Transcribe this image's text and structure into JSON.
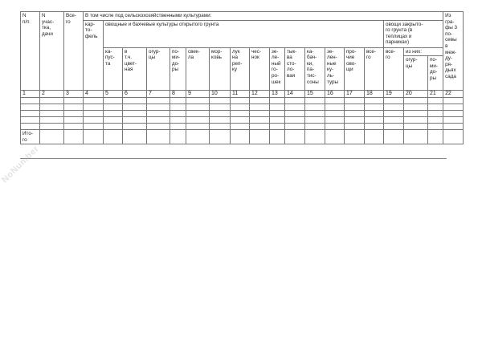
{
  "watermark": "NoNumber",
  "header": {
    "c1": "N\nп/п",
    "c2": "N\nучас-\nтка,\nдачи",
    "c3": "Все-\nго",
    "group": "В том числе под сельскохозяйственными культурами:",
    "c22": "Из\nгра-\nфы 3\nпо-\nсевы\nв\nмеж-\nду-\nря-\nдьях\nсада",
    "c4": "кар-\nто-\nфель",
    "open": "овощные и бахчевые культуры открытого грунта",
    "closed": "овощи закрыто-\nго грунта (в\nтеплицах и\nпарниках)",
    "open_cols": [
      "ка-\nпус-\nта",
      "в\nт.ч.\nцвет-\nная",
      "огур-\nцы",
      "по-\nми-\nдо-\nры",
      "свек-\nла",
      "мор-\nковь",
      "лук\nна\nреп-\nку",
      "чес-\nнок",
      "зе-\nле-\nный\nго-\nро-\nшек",
      "тык-\nва\nсто-\nло-\nвая",
      "ка-\nбач-\nки,\nпа-\nтис-\nсоны",
      "зе-\nлен-\nные\nку-\nль-\nтуры",
      "про-\nчие\nово-\nщи",
      "все-\nго"
    ],
    "c19": "все-\nго",
    "of_them": "из них:",
    "c20": "огур-\nцы",
    "c21": "по-\nми-\nдо-\nры"
  },
  "numbers": [
    "1",
    "2",
    "3",
    "4",
    "5",
    "6",
    "7",
    "8",
    "9",
    "10",
    "11",
    "12",
    "13",
    "14",
    "15",
    "16",
    "17",
    "18",
    "19",
    "20",
    "21",
    "22"
  ],
  "total_label": "Ито-\nго"
}
